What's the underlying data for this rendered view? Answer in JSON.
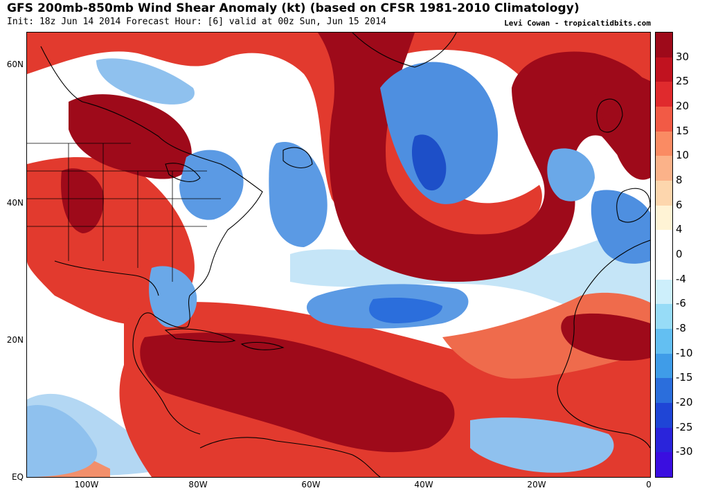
{
  "header": {
    "title": "GFS 200mb-850mb Wind Shear Anomaly (kt) (based on CFSR 1981-2010 Climatology)",
    "subtitle": "Init: 18z Jun 14 2014 Forecast Hour: [6] valid at 00z Sun, Jun 15 2014",
    "credit": "Levi Cowan - tropicaltidbits.com"
  },
  "map": {
    "lat_labels": [
      "60N",
      "40N",
      "20N",
      "EQ"
    ],
    "lon_labels": [
      "100W",
      "80W",
      "60W",
      "40W",
      "20W",
      "0"
    ],
    "colors": {
      "strong_positive": "#9e0a1a",
      "positive": "#d7282c",
      "weak_positive": "#f6a280",
      "neutral": "#ffffff",
      "weak_negative": "#a6d0f1",
      "negative": "#4e8fe0",
      "strong_negative": "#1d4fc8",
      "coastline": "#000000"
    }
  },
  "colorbar": {
    "labels": [
      "30",
      "25",
      "20",
      "15",
      "10",
      "8",
      "6",
      "4",
      "0",
      "-4",
      "-6",
      "-8",
      "-10",
      "-15",
      "-20",
      "-25",
      "-30"
    ],
    "colors": [
      "#9e0a1a",
      "#c1121f",
      "#e02a2d",
      "#f25a45",
      "#fa8b63",
      "#fbb289",
      "#fdd6ad",
      "#fff3d5",
      "#ffffff",
      "#ffffff",
      "#cdeffb",
      "#97dcf7",
      "#63bff2",
      "#3f9ce8",
      "#2b6edc",
      "#1f45d6",
      "#2a24db",
      "#3a0ee0"
    ]
  }
}
